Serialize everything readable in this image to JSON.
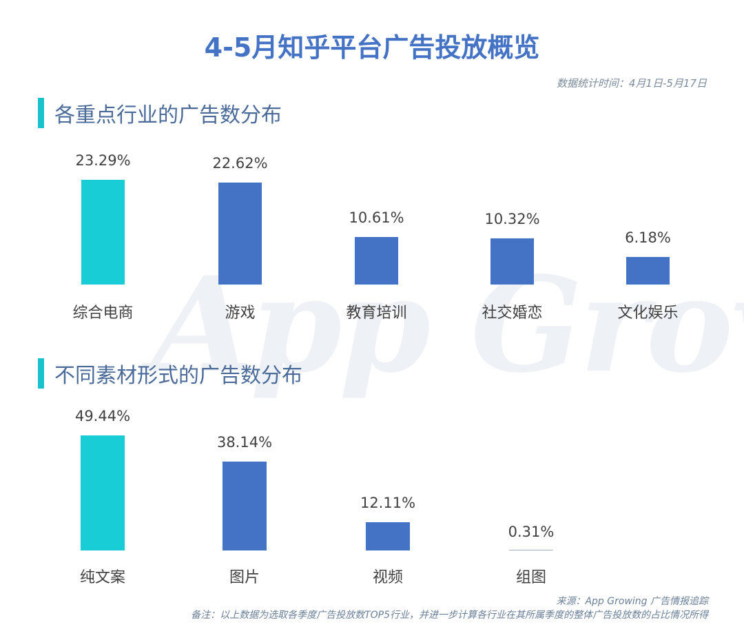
{
  "title": "4-5月知乎平台广告投放概览",
  "stat_time": "数据统计时间：4月1日-5月17日",
  "watermark": "App Growing",
  "colors": {
    "highlight": "#19cdd6",
    "bar": "#4472c4",
    "title": "#4472c4",
    "accent": "#19c3cc"
  },
  "sections": [
    {
      "heading": "各重点行业的广告数分布"
    },
    {
      "heading": "不同素材形式的广告数分布"
    }
  ],
  "chart_data": [
    {
      "type": "bar",
      "title": "各重点行业的广告数分布",
      "categories": [
        "综合电商",
        "游戏",
        "教育培训",
        "社交婚恋",
        "文化娱乐"
      ],
      "values": [
        23.29,
        22.62,
        10.61,
        10.32,
        6.18
      ],
      "value_labels": [
        "23.29%",
        "22.62%",
        "10.61%",
        "10.32%",
        "6.18%"
      ],
      "unit": "%",
      "xlabel": "",
      "ylabel": "",
      "grid": false,
      "legend": null
    },
    {
      "type": "bar",
      "title": "不同素材形式的广告数分布",
      "categories": [
        "纯文案",
        "图片",
        "视频",
        "组图"
      ],
      "values": [
        49.44,
        38.14,
        12.11,
        0.31
      ],
      "value_labels": [
        "49.44%",
        "38.14%",
        "12.11%",
        "0.31%"
      ],
      "unit": "%",
      "xlabel": "",
      "ylabel": "",
      "grid": false,
      "legend": null
    }
  ],
  "footer": {
    "source": "来源：App Growing 广告情报追踪",
    "note": "备注：以上数据为选取各季度广告投放数TOP5行业，并进一步计算各行业在其所属季度的整体广告投放数的占比情况所得"
  }
}
